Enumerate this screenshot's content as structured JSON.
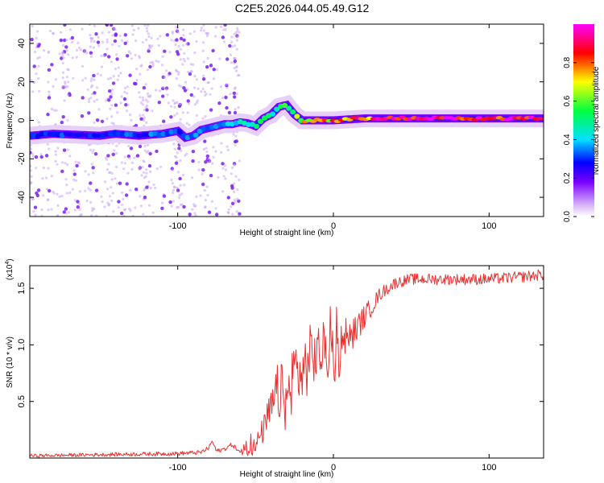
{
  "figure_title": "C2E5.2026.044.05.49.G12",
  "chart_data": [
    {
      "type": "heatmap",
      "name": "spectrogram",
      "xlabel": "Height of straight line (km)",
      "ylabel": "Frequency (Hz)",
      "xlim": [
        -195,
        135
      ],
      "ylim": [
        -50,
        50
      ],
      "xticks": [
        -100,
        0,
        100
      ],
      "xtick_labels": [
        "-100",
        "0",
        "100"
      ],
      "yticks": [
        -40,
        -20,
        0,
        20,
        40
      ],
      "ytick_labels": [
        "-40",
        "-20",
        "0",
        "20",
        "40"
      ],
      "grid": false,
      "ridge": {
        "x": [
          -195,
          -180,
          -165,
          -150,
          -140,
          -125,
          -110,
          -100,
          -95,
          -90,
          -85,
          -80,
          -75,
          -70,
          -65,
          -60,
          -55,
          -50,
          -45,
          -40,
          -35,
          -30,
          -25,
          -20,
          -15,
          -10,
          -5,
          0,
          10,
          20,
          40,
          60,
          80,
          100,
          120,
          135
        ],
        "y": [
          -8,
          -7,
          -7.5,
          -8,
          -7,
          -8,
          -7,
          -5.5,
          -9,
          -8,
          -5,
          -4,
          -3,
          -2,
          -2,
          -1,
          -1.5,
          -3,
          1,
          3,
          7,
          8,
          3,
          0,
          0,
          0,
          0,
          0,
          0.5,
          1,
          1,
          1,
          1,
          1,
          1,
          1
        ]
      },
      "ridge_amplitude": {
        "x": [
          -195,
          -100,
          -60,
          -30,
          -20,
          0,
          30,
          60,
          100,
          135
        ],
        "amp": [
          0.3,
          0.35,
          0.45,
          0.55,
          0.7,
          0.8,
          0.95,
          1.0,
          1.0,
          1.0
        ]
      },
      "noise_region_x": [
        -195,
        -60
      ]
    },
    {
      "type": "colorbar",
      "name": "colorbar",
      "label": "Normalized spectral amplitude",
      "range": [
        0,
        1
      ],
      "ticks": [
        0.0,
        0.2,
        0.4,
        0.6,
        0.8
      ],
      "tick_labels": [
        "0.0",
        "0.2",
        "0.4",
        "0.6",
        "0.8"
      ],
      "colormap": [
        "#ffffff",
        "#d8b4f8",
        "#7a00ff",
        "#0000ff",
        "#00e0ff",
        "#00ff40",
        "#ffff00",
        "#ff0000",
        "#ff00ff"
      ]
    },
    {
      "type": "line",
      "name": "snr",
      "xlabel": "Height of straight line (km)",
      "ylabel": "SNR (10 * v/v)",
      "multiplier_label": "(x10",
      "multiplier_exponent": "4",
      "multiplier_close": ")",
      "xlim": [
        -195,
        135
      ],
      "ylim": [
        0,
        1.7
      ],
      "xticks": [
        -100,
        0,
        100
      ],
      "xtick_labels": [
        "-100",
        "0",
        "100"
      ],
      "yticks": [
        0.5,
        1.0,
        1.5
      ],
      "ytick_labels": [
        "0.5",
        "1.0",
        "1.5"
      ],
      "color": "#e8322e",
      "x": [
        -195,
        -150,
        -100,
        -85,
        -80,
        -78,
        -75,
        -70,
        -65,
        -60,
        -50,
        -45,
        -40,
        -35,
        -30,
        -25,
        -20,
        -15,
        -10,
        -5,
        0,
        5,
        10,
        15,
        20,
        25,
        30,
        40,
        50,
        60,
        80,
        100,
        120,
        135
      ],
      "y": [
        0.02,
        0.03,
        0.04,
        0.05,
        0.09,
        0.15,
        0.06,
        0.08,
        0.12,
        0.05,
        0.1,
        0.25,
        0.42,
        0.6,
        0.48,
        0.8,
        0.72,
        0.9,
        0.92,
        0.96,
        0.83,
        0.93,
        1.05,
        1.15,
        1.25,
        1.35,
        1.45,
        1.55,
        1.58,
        1.58,
        1.58,
        1.58,
        1.6,
        1.62
      ],
      "noise_amplitude": {
        "x": [
          -195,
          -60,
          -45,
          -35,
          -20,
          -5,
          10,
          30,
          40,
          135
        ],
        "amp": [
          0.015,
          0.02,
          0.12,
          0.28,
          0.3,
          0.25,
          0.15,
          0.06,
          0.05,
          0.05
        ]
      }
    }
  ]
}
